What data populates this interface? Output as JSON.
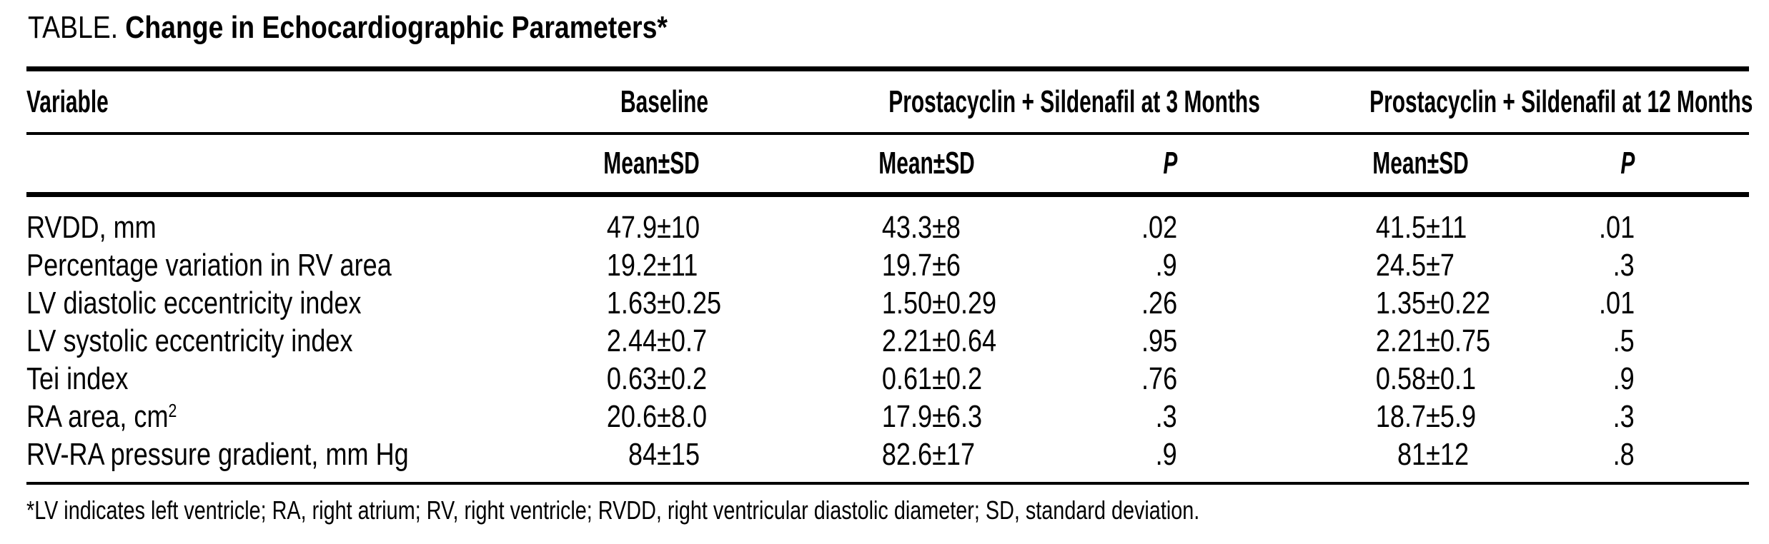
{
  "title": {
    "prefix": "TABLE.",
    "text": "Change in Echocardiographic Parameters*"
  },
  "symbols": {
    "plus_minus": "±"
  },
  "table": {
    "header": {
      "variable": "Variable",
      "baseline": "Baseline",
      "group_3months": "Prostacyclin + Sildenafil at 3 Months",
      "group_12months": "Prostacyclin + Sildenafil at 12 Months",
      "mean_label": "Mean",
      "sd_label": "SD",
      "p_label": "P"
    },
    "rows": [
      {
        "variable": "RVDD, mm",
        "baseline": {
          "mean": "47.9",
          "sd": "10"
        },
        "m3": {
          "mean": "43.3",
          "sd": "8"
        },
        "p3": ".02",
        "m12": {
          "mean": "41.5",
          "sd": "11"
        },
        "p12": ".01"
      },
      {
        "variable": "Percentage variation in RV area",
        "baseline": {
          "mean": "19.2",
          "sd": "11"
        },
        "m3": {
          "mean": "19.7",
          "sd": "6"
        },
        "p3": ".9",
        "m12": {
          "mean": "24.5",
          "sd": "7"
        },
        "p12": ".3"
      },
      {
        "variable": "LV diastolic eccentricity index",
        "baseline": {
          "mean": "1.63",
          "sd": "0.25"
        },
        "m3": {
          "mean": "1.50",
          "sd": "0.29"
        },
        "p3": ".26",
        "m12": {
          "mean": "1.35",
          "sd": "0.22"
        },
        "p12": ".01"
      },
      {
        "variable": "LV systolic eccentricity index",
        "baseline": {
          "mean": "2.44",
          "sd": "0.7"
        },
        "m3": {
          "mean": "2.21",
          "sd": "0.64"
        },
        "p3": ".95",
        "m12": {
          "mean": "2.21",
          "sd": "0.75"
        },
        "p12": ".5"
      },
      {
        "variable": "Tei index",
        "baseline": {
          "mean": "0.63",
          "sd": "0.2"
        },
        "m3": {
          "mean": "0.61",
          "sd": "0.2"
        },
        "p3": ".76",
        "m12": {
          "mean": "0.58",
          "sd": "0.1"
        },
        "p12": ".9"
      },
      {
        "variable": "RA area, cm",
        "variable_sup": "2",
        "baseline": {
          "mean": "20.6",
          "sd": "8.0"
        },
        "m3": {
          "mean": "17.9",
          "sd": "6.3"
        },
        "p3": ".3",
        "m12": {
          "mean": "18.7",
          "sd": "5.9"
        },
        "p12": ".3"
      },
      {
        "variable": "RV-RA pressure gradient, mm Hg",
        "baseline": {
          "mean": "84",
          "sd": "15"
        },
        "m3": {
          "mean": "82.6",
          "sd": "17"
        },
        "p3": ".9",
        "m12": {
          "mean": "81",
          "sd": "12"
        },
        "p12": ".8"
      }
    ]
  },
  "footnote": {
    "marker": "*",
    "text": "LV indicates left ventricle; RA, right atrium; RV, right ventricle; RVDD, right ventricular diastolic diameter; SD, standard deviation."
  }
}
